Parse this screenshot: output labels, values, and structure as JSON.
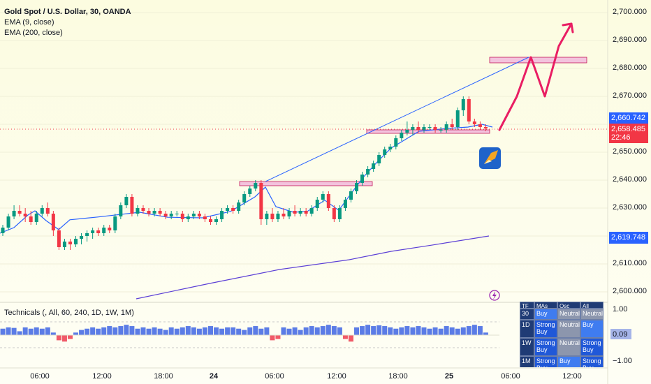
{
  "legend": {
    "symbol": "Gold Spot / U.S. Dollar, 30, OANDA",
    "ema9": "EMA (9, close)",
    "ema200": "EMA (200, close)"
  },
  "indicator": {
    "name": "Technicals (, All, 60, 240, 1D, 1W, 1M)",
    "value": "0.09",
    "scale_top": "1.00",
    "scale_bottom": "−1.00"
  },
  "price_axis": [
    "2,700.000",
    "2,690.000",
    "2,680.000",
    "2,670.000",
    "2,660.000",
    "2,650.000",
    "2,640.000",
    "2,630.000",
    "2,620.000",
    "2,610.000",
    "2,600.000"
  ],
  "price_tags": {
    "last_high": "2,660.742",
    "last_price": "2,658.485",
    "countdown": "22:46",
    "ema200": "2,619.748"
  },
  "time_axis": [
    {
      "label": "06:00",
      "bold": false
    },
    {
      "label": "12:00",
      "bold": false
    },
    {
      "label": "18:00",
      "bold": false
    },
    {
      "label": "24",
      "bold": true
    },
    {
      "label": "06:00",
      "bold": false
    },
    {
      "label": "12:00",
      "bold": false
    },
    {
      "label": "18:00",
      "bold": false
    },
    {
      "label": "25",
      "bold": true
    },
    {
      "label": "06:00",
      "bold": false
    },
    {
      "label": "12:00",
      "bold": false
    }
  ],
  "tech_table": {
    "header": [
      "TF",
      "MAs",
      "Osc",
      "All"
    ],
    "rows": [
      {
        "tf": "30",
        "ma": "Buy",
        "osc": "Neutral",
        "all": "Neutral"
      },
      {
        "tf": "1D",
        "ma": "Strong Buy",
        "osc": "Neutral",
        "all": "Buy"
      },
      {
        "tf": "1W",
        "ma": "Strong Buy",
        "osc": "Neutral",
        "all": "Strong Buy"
      },
      {
        "tf": "1M",
        "ma": "Strong Buy",
        "osc": "Buy",
        "all": "Strong Buy"
      }
    ]
  },
  "colors": {
    "up": "#089981",
    "down": "#f23645",
    "ema9": "#2962ff",
    "ema200": "#5b3fd6",
    "zone": "#f3c3dd",
    "projection": "#e91e63",
    "hist_up": "#5b7ce6",
    "hist_down": "#f05a68"
  },
  "chart_data": {
    "type": "candlestick",
    "symbol": "Gold Spot / U.S. Dollar, 30, OANDA",
    "ylim": [
      2597,
      2705
    ],
    "candles": [
      [
        2621,
        2624,
        2620,
        2623
      ],
      [
        2623,
        2628,
        2622,
        2627
      ],
      [
        2627,
        2631,
        2626,
        2629
      ],
      [
        2629,
        2631,
        2627,
        2628
      ],
      [
        2628,
        2630,
        2625,
        2627
      ],
      [
        2627,
        2629,
        2624,
        2625
      ],
      [
        2625,
        2629,
        2624,
        2628
      ],
      [
        2628,
        2631,
        2627,
        2630
      ],
      [
        2630,
        2632,
        2627,
        2628
      ],
      [
        2628,
        2629,
        2620,
        2622
      ],
      [
        2622,
        2623,
        2615,
        2616
      ],
      [
        2616,
        2619,
        2615,
        2618
      ],
      [
        2618,
        2619,
        2615,
        2617
      ],
      [
        2617,
        2620,
        2616,
        2619
      ],
      [
        2619,
        2621,
        2617,
        2620
      ],
      [
        2620,
        2622,
        2618,
        2621
      ],
      [
        2621,
        2623,
        2619,
        2622
      ],
      [
        2622,
        2623,
        2620,
        2621
      ],
      [
        2621,
        2624,
        2620,
        2623
      ],
      [
        2623,
        2624,
        2621,
        2622
      ],
      [
        2622,
        2628,
        2621,
        2627
      ],
      [
        2627,
        2632,
        2626,
        2631
      ],
      [
        2631,
        2635,
        2630,
        2634
      ],
      [
        2634,
        2635,
        2627,
        2628
      ],
      [
        2628,
        2631,
        2627,
        2630
      ],
      [
        2630,
        2631,
        2628,
        2629
      ],
      [
        2629,
        2630,
        2627,
        2628
      ],
      [
        2628,
        2630,
        2627,
        2629
      ],
      [
        2629,
        2630,
        2627,
        2628
      ],
      [
        2628,
        2629,
        2626,
        2627
      ],
      [
        2627,
        2629,
        2626,
        2628
      ],
      [
        2628,
        2629,
        2627,
        2628
      ],
      [
        2628,
        2629,
        2625,
        2626
      ],
      [
        2626,
        2628,
        2625,
        2627
      ],
      [
        2627,
        2629,
        2626,
        2628
      ],
      [
        2628,
        2629,
        2626,
        2627
      ],
      [
        2627,
        2628,
        2625,
        2626
      ],
      [
        2626,
        2627,
        2624,
        2625
      ],
      [
        2625,
        2627,
        2624,
        2626
      ],
      [
        2626,
        2630,
        2625,
        2629
      ],
      [
        2629,
        2631,
        2628,
        2630
      ],
      [
        2630,
        2631,
        2628,
        2629
      ],
      [
        2629,
        2633,
        2628,
        2632
      ],
      [
        2632,
        2636,
        2631,
        2635
      ],
      [
        2635,
        2638,
        2634,
        2637
      ],
      [
        2637,
        2640,
        2636,
        2639
      ],
      [
        2639,
        2640,
        2624,
        2626
      ],
      [
        2626,
        2629,
        2624,
        2628
      ],
      [
        2628,
        2630,
        2625,
        2626
      ],
      [
        2626,
        2629,
        2625,
        2628
      ],
      [
        2628,
        2630,
        2626,
        2627
      ],
      [
        2627,
        2630,
        2626,
        2629
      ],
      [
        2629,
        2631,
        2627,
        2628
      ],
      [
        2628,
        2630,
        2627,
        2629
      ],
      [
        2629,
        2630,
        2627,
        2628
      ],
      [
        2628,
        2631,
        2627,
        2630
      ],
      [
        2630,
        2634,
        2629,
        2633
      ],
      [
        2633,
        2636,
        2632,
        2635
      ],
      [
        2635,
        2636,
        2629,
        2630
      ],
      [
        2630,
        2631,
        2625,
        2626
      ],
      [
        2626,
        2631,
        2625,
        2630
      ],
      [
        2630,
        2634,
        2629,
        2633
      ],
      [
        2633,
        2637,
        2632,
        2636
      ],
      [
        2636,
        2640,
        2635,
        2639
      ],
      [
        2639,
        2643,
        2638,
        2642
      ],
      [
        2642,
        2645,
        2641,
        2644
      ],
      [
        2644,
        2647,
        2643,
        2646
      ],
      [
        2646,
        2650,
        2645,
        2649
      ],
      [
        2649,
        2652,
        2648,
        2651
      ],
      [
        2651,
        2653,
        2650,
        2652
      ],
      [
        2652,
        2656,
        2651,
        2655
      ],
      [
        2655,
        2658,
        2654,
        2657
      ],
      [
        2657,
        2661,
        2656,
        2658
      ],
      [
        2658,
        2660,
        2656,
        2659
      ],
      [
        2659,
        2661,
        2657,
        2658
      ],
      [
        2658,
        2660,
        2657,
        2659
      ],
      [
        2659,
        2660,
        2658,
        2659
      ],
      [
        2659,
        2660,
        2657,
        2658
      ],
      [
        2658,
        2659,
        2657,
        2658
      ],
      [
        2658,
        2661,
        2657,
        2660
      ],
      [
        2660,
        2662,
        2658,
        2659
      ],
      [
        2659,
        2666,
        2658,
        2665
      ],
      [
        2665,
        2670,
        2663,
        2669
      ],
      [
        2669,
        2670,
        2660,
        2661
      ],
      [
        2661,
        2662,
        2659,
        2660
      ],
      [
        2660,
        2661,
        2658,
        2659
      ],
      [
        2659,
        2660,
        2657.5,
        2658.5
      ]
    ],
    "ema9": [
      [
        0,
        2621
      ],
      [
        20,
        2623
      ],
      [
        40,
        2627.5
      ],
      [
        50,
        2629
      ],
      [
        66,
        2625.5
      ],
      [
        84,
        2622.3
      ],
      [
        100,
        2625.8
      ],
      [
        140,
        2626.8
      ],
      [
        200,
        2628.5
      ],
      [
        240,
        2626.7
      ],
      [
        290,
        2626.5
      ],
      [
        330,
        2628.8
      ],
      [
        365,
        2634
      ],
      [
        380,
        2637.5
      ],
      [
        395,
        2630.5
      ],
      [
        420,
        2628.5
      ],
      [
        440,
        2628.8
      ],
      [
        465,
        2632.8
      ],
      [
        485,
        2629.2
      ],
      [
        505,
        2636
      ],
      [
        520,
        2641
      ],
      [
        540,
        2646.5
      ],
      [
        560,
        2651.5
      ],
      [
        580,
        2654.5
      ],
      [
        600,
        2657.5
      ],
      [
        640,
        2658.5
      ],
      [
        670,
        2659
      ],
      [
        690,
        2660
      ],
      [
        705,
        2659
      ]
    ],
    "ema200": [
      [
        195,
        2597.5
      ],
      [
        300,
        2603
      ],
      [
        400,
        2608
      ],
      [
        500,
        2611.5
      ],
      [
        560,
        2614.5
      ],
      [
        620,
        2616.8
      ],
      [
        700,
        2620
      ]
    ],
    "trendline": [
      [
        380,
        2639.5
      ],
      [
        757,
        2684
      ]
    ],
    "projection": [
      [
        715,
        2658
      ],
      [
        740,
        2670
      ],
      [
        760,
        2684
      ],
      [
        780,
        2670
      ],
      [
        800,
        2688
      ],
      [
        818,
        2696
      ]
    ],
    "zones": [
      {
        "from": 2638,
        "to": 2639.5,
        "x0": 343,
        "x1": 533
      },
      {
        "from": 2657,
        "to": 2658,
        "x0": 525,
        "x1": 701
      },
      {
        "from": 2682,
        "to": 2684,
        "x0": 701,
        "x1": 840
      }
    ],
    "technicals_hist": [
      0.25,
      0.3,
      0.28,
      0.15,
      0.3,
      0.25,
      0.3,
      0.25,
      0.3,
      0.1,
      -0.2,
      -0.25,
      -0.15,
      0.1,
      0.2,
      0.25,
      0.3,
      0.25,
      0.3,
      0.35,
      0.3,
      0.35,
      0.4,
      0.35,
      0.25,
      0.3,
      0.25,
      0.3,
      0.25,
      0.2,
      0.3,
      0.25,
      0.3,
      0.35,
      0.3,
      0.25,
      0.3,
      0.35,
      0.3,
      0.25,
      0.3,
      0.3,
      0.25,
      0.2,
      0.3,
      0.35,
      0.25,
      0.3,
      -0.2,
      -0.15,
      0.3,
      0.25,
      0.3,
      0.2,
      0.3,
      0.35,
      0.3,
      0.35,
      0.4,
      0.35,
      0.3,
      -0.15,
      -0.25,
      0.3,
      0.35,
      0.4,
      0.35,
      0.38,
      0.35,
      0.3,
      0.25,
      0.3,
      0.35,
      0.3,
      0.35,
      0.3,
      0.25,
      0.3,
      0.25,
      0.35,
      0.3,
      0.25,
      0.3,
      0.35,
      0.4,
      0.35,
      0.1
    ]
  }
}
